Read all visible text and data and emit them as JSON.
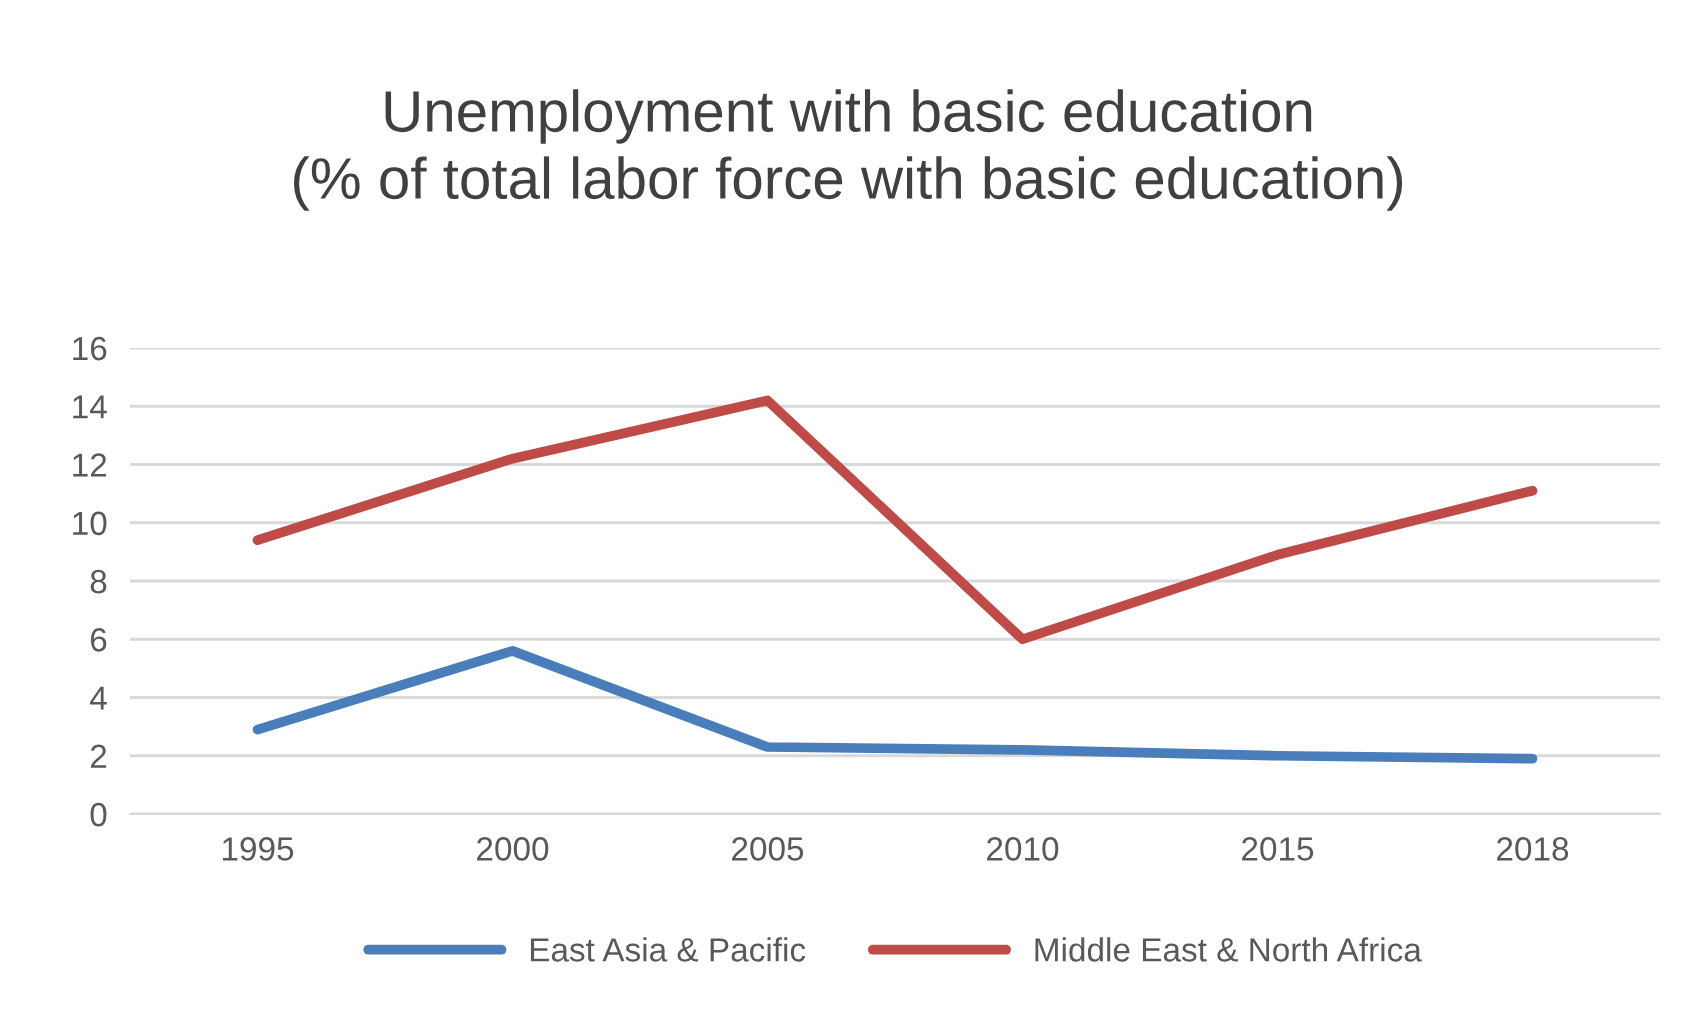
{
  "chart_data": {
    "type": "line",
    "title": "Unemployment with basic education\n(% of total labor force with basic education)",
    "categories": [
      "1995",
      "2000",
      "2005",
      "2010",
      "2015",
      "2018"
    ],
    "series": [
      {
        "name": "East Asia & Pacific",
        "color": "#4a7ebb",
        "values": [
          2.9,
          5.6,
          2.3,
          2.2,
          2.0,
          1.9
        ]
      },
      {
        "name": "Middle East & North Africa",
        "color": "#be4b48",
        "values": [
          9.4,
          12.2,
          14.2,
          6.0,
          8.9,
          11.1
        ]
      }
    ],
    "ylim": [
      0,
      16
    ],
    "yticks": [
      0,
      2,
      4,
      6,
      8,
      10,
      12,
      14,
      16
    ],
    "grid": "y",
    "legend": "bottom",
    "marker": "none",
    "line_style": "solid"
  }
}
